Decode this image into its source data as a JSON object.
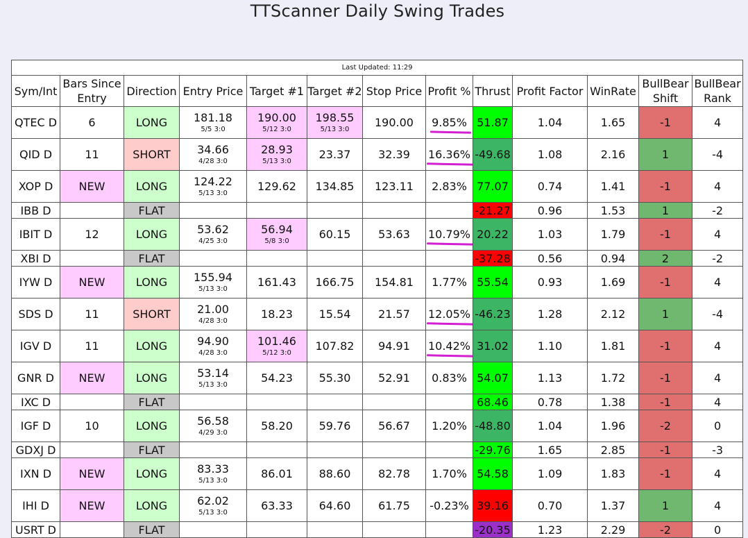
{
  "page": {
    "title": "TTScanner Daily Swing Trades"
  },
  "last_updated": "Last Updated: 11:29",
  "columns": [
    "Sym/Int",
    "Bars Since Entry",
    "Direction",
    "Entry Price",
    "Target #1",
    "Target #2",
    "Stop Price",
    "Profit %",
    "Thrust",
    "Profit Factor",
    "WinRate",
    "BullBear Shift",
    "BullBear Rank"
  ],
  "colors": {
    "long": "#ccffcc",
    "short": "#ffcccc",
    "flat": "#c8c8c8",
    "new": "#ffccff",
    "target_hit": "#ffccff",
    "thrust_bright_green": "#00ff00",
    "thrust_green": "#3cb664",
    "thrust_red": "#ff0000",
    "thrust_purple": "#9b30c8",
    "shift_red": "#e07070",
    "shift_green": "#70b870",
    "underline": "#d21fd2"
  },
  "rows": [
    {
      "sym": "QTEC D",
      "bars": "6",
      "dir": "LONG",
      "entry": "181.18",
      "entry_date": "5/5 3:0",
      "t1": "190.00",
      "t1_date": "5/12 3:0",
      "t2": "198.55",
      "t2_date": "5/13 3:0",
      "stop": "190.00",
      "profit": "9.85%",
      "thrust": "51.87",
      "pf": "1.04",
      "winrate": "1.65",
      "shift": "-1",
      "rank": "4"
    },
    {
      "sym": "QID D",
      "bars": "11",
      "dir": "SHORT",
      "entry": "34.66",
      "entry_date": "4/28 3:0",
      "t1": "28.93",
      "t1_date": "5/13 3:0",
      "t2": "23.37",
      "t2_date": "",
      "stop": "32.39",
      "profit": "16.36%",
      "thrust": "-49.68",
      "pf": "1.08",
      "winrate": "2.16",
      "shift": "1",
      "rank": "-4"
    },
    {
      "sym": "XOP D",
      "bars": "NEW",
      "dir": "LONG",
      "entry": "124.22",
      "entry_date": "5/13 3:0",
      "t1": "129.62",
      "t1_date": "",
      "t2": "134.85",
      "t2_date": "",
      "stop": "123.11",
      "profit": "2.83%",
      "thrust": "77.07",
      "pf": "0.74",
      "winrate": "1.41",
      "shift": "-1",
      "rank": "4"
    },
    {
      "sym": "IBB D",
      "bars": "",
      "dir": "FLAT",
      "entry": "",
      "entry_date": "",
      "t1": "",
      "t1_date": "",
      "t2": "",
      "t2_date": "",
      "stop": "",
      "profit": "",
      "thrust": "-21.27",
      "pf": "0.96",
      "winrate": "1.53",
      "shift": "1",
      "rank": "-2"
    },
    {
      "sym": "IBIT D",
      "bars": "12",
      "dir": "LONG",
      "entry": "53.62",
      "entry_date": "4/25 3:0",
      "t1": "56.94",
      "t1_date": "5/8 3:0",
      "t2": "60.15",
      "t2_date": "",
      "stop": "53.63",
      "profit": "10.79%",
      "thrust": "20.22",
      "pf": "1.03",
      "winrate": "1.79",
      "shift": "-1",
      "rank": "4"
    },
    {
      "sym": "XBI D",
      "bars": "",
      "dir": "FLAT",
      "entry": "",
      "entry_date": "",
      "t1": "",
      "t1_date": "",
      "t2": "",
      "t2_date": "",
      "stop": "",
      "profit": "",
      "thrust": "-37.28",
      "pf": "0.56",
      "winrate": "0.94",
      "shift": "2",
      "rank": "-2"
    },
    {
      "sym": "IYW D",
      "bars": "NEW",
      "dir": "LONG",
      "entry": "155.94",
      "entry_date": "5/13 3:0",
      "t1": "161.43",
      "t1_date": "",
      "t2": "166.75",
      "t2_date": "",
      "stop": "154.81",
      "profit": "1.77%",
      "thrust": "55.54",
      "pf": "0.93",
      "winrate": "1.69",
      "shift": "-1",
      "rank": "4"
    },
    {
      "sym": "SDS D",
      "bars": "11",
      "dir": "SHORT",
      "entry": "21.00",
      "entry_date": "4/28 3:0",
      "t1": "18.23",
      "t1_date": "",
      "t2": "15.54",
      "t2_date": "",
      "stop": "21.57",
      "profit": "12.05%",
      "thrust": "-46.23",
      "pf": "1.28",
      "winrate": "2.12",
      "shift": "1",
      "rank": "-4"
    },
    {
      "sym": "IGV D",
      "bars": "11",
      "dir": "LONG",
      "entry": "94.90",
      "entry_date": "4/28 3:0",
      "t1": "101.46",
      "t1_date": "5/12 3:0",
      "t2": "107.82",
      "t2_date": "",
      "stop": "94.91",
      "profit": "10.42%",
      "thrust": "31.02",
      "pf": "1.10",
      "winrate": "1.81",
      "shift": "-1",
      "rank": "4"
    },
    {
      "sym": "GNR D",
      "bars": "NEW",
      "dir": "LONG",
      "entry": "53.14",
      "entry_date": "5/13 3:0",
      "t1": "54.23",
      "t1_date": "",
      "t2": "55.30",
      "t2_date": "",
      "stop": "52.91",
      "profit": "0.83%",
      "thrust": "54.07",
      "pf": "1.13",
      "winrate": "1.72",
      "shift": "-1",
      "rank": "4"
    },
    {
      "sym": "IXC D",
      "bars": "",
      "dir": "FLAT",
      "entry": "",
      "entry_date": "",
      "t1": "",
      "t1_date": "",
      "t2": "",
      "t2_date": "",
      "stop": "",
      "profit": "",
      "thrust": "68.46",
      "pf": "0.78",
      "winrate": "1.38",
      "shift": "-1",
      "rank": "4"
    },
    {
      "sym": "IGF D",
      "bars": "10",
      "dir": "LONG",
      "entry": "56.58",
      "entry_date": "4/29 3:0",
      "t1": "58.20",
      "t1_date": "",
      "t2": "59.76",
      "t2_date": "",
      "stop": "56.67",
      "profit": "1.20%",
      "thrust": "-48.80",
      "pf": "1.04",
      "winrate": "1.96",
      "shift": "-2",
      "rank": "0"
    },
    {
      "sym": "GDXJ D",
      "bars": "",
      "dir": "FLAT",
      "entry": "",
      "entry_date": "",
      "t1": "",
      "t1_date": "",
      "t2": "",
      "t2_date": "",
      "stop": "",
      "profit": "",
      "thrust": "-29.76",
      "pf": "1.65",
      "winrate": "2.85",
      "shift": "-1",
      "rank": "-3"
    },
    {
      "sym": "IXN D",
      "bars": "NEW",
      "dir": "LONG",
      "entry": "83.33",
      "entry_date": "5/13 3:0",
      "t1": "86.01",
      "t1_date": "",
      "t2": "88.60",
      "t2_date": "",
      "stop": "82.78",
      "profit": "1.70%",
      "thrust": "54.58",
      "pf": "1.09",
      "winrate": "1.83",
      "shift": "-1",
      "rank": "4"
    },
    {
      "sym": "IHI D",
      "bars": "NEW",
      "dir": "LONG",
      "entry": "62.02",
      "entry_date": "5/13 3:0",
      "t1": "63.33",
      "t1_date": "",
      "t2": "64.60",
      "t2_date": "",
      "stop": "61.75",
      "profit": "-0.23%",
      "thrust": "39.16",
      "pf": "0.70",
      "winrate": "1.37",
      "shift": "1",
      "rank": "4"
    },
    {
      "sym": "USRT D",
      "bars": "",
      "dir": "FLAT",
      "entry": "",
      "entry_date": "",
      "t1": "",
      "t1_date": "",
      "t2": "",
      "t2_date": "",
      "stop": "",
      "profit": "",
      "thrust": "-20.35",
      "pf": "1.23",
      "winrate": "2.29",
      "shift": "-2",
      "rank": "0"
    }
  ],
  "row_styles": [
    {
      "tall": true,
      "t1_hit": true,
      "t2_hit": true,
      "underline": true,
      "thrust": "thrust_bright_green",
      "shift": "shift_red"
    },
    {
      "tall": true,
      "t1_hit": true,
      "t2_hit": false,
      "underline": true,
      "thrust": "thrust_green",
      "shift": "shift_green"
    },
    {
      "tall": true,
      "t1_hit": false,
      "t2_hit": false,
      "underline": false,
      "thrust": "thrust_bright_green",
      "shift": "shift_red"
    },
    {
      "tall": false,
      "t1_hit": false,
      "t2_hit": false,
      "underline": false,
      "thrust": "thrust_red",
      "shift": "shift_green"
    },
    {
      "tall": true,
      "t1_hit": true,
      "t2_hit": false,
      "underline": true,
      "thrust": "thrust_green",
      "shift": "shift_red"
    },
    {
      "tall": false,
      "t1_hit": false,
      "t2_hit": false,
      "underline": false,
      "thrust": "thrust_red",
      "shift": "shift_green"
    },
    {
      "tall": true,
      "t1_hit": false,
      "t2_hit": false,
      "underline": false,
      "thrust": "thrust_bright_green",
      "shift": "shift_red"
    },
    {
      "tall": true,
      "t1_hit": false,
      "t2_hit": false,
      "underline": true,
      "thrust": "thrust_green",
      "shift": "shift_green"
    },
    {
      "tall": true,
      "t1_hit": true,
      "t2_hit": false,
      "underline": true,
      "thrust": "thrust_green",
      "shift": "shift_red"
    },
    {
      "tall": true,
      "t1_hit": false,
      "t2_hit": false,
      "underline": false,
      "thrust": "thrust_bright_green",
      "shift": "shift_red"
    },
    {
      "tall": false,
      "t1_hit": false,
      "t2_hit": false,
      "underline": false,
      "thrust": "thrust_bright_green",
      "shift": "shift_red"
    },
    {
      "tall": true,
      "t1_hit": false,
      "t2_hit": false,
      "underline": false,
      "thrust": "thrust_green",
      "shift": "shift_red"
    },
    {
      "tall": false,
      "t1_hit": false,
      "t2_hit": false,
      "underline": false,
      "thrust": "thrust_bright_green",
      "shift": "shift_red"
    },
    {
      "tall": true,
      "t1_hit": false,
      "t2_hit": false,
      "underline": false,
      "thrust": "thrust_bright_green",
      "shift": "shift_red"
    },
    {
      "tall": true,
      "t1_hit": false,
      "t2_hit": false,
      "underline": false,
      "thrust": "thrust_red",
      "shift": "shift_green"
    },
    {
      "tall": false,
      "t1_hit": false,
      "t2_hit": false,
      "underline": false,
      "thrust": "thrust_purple",
      "shift": "shift_red"
    }
  ]
}
